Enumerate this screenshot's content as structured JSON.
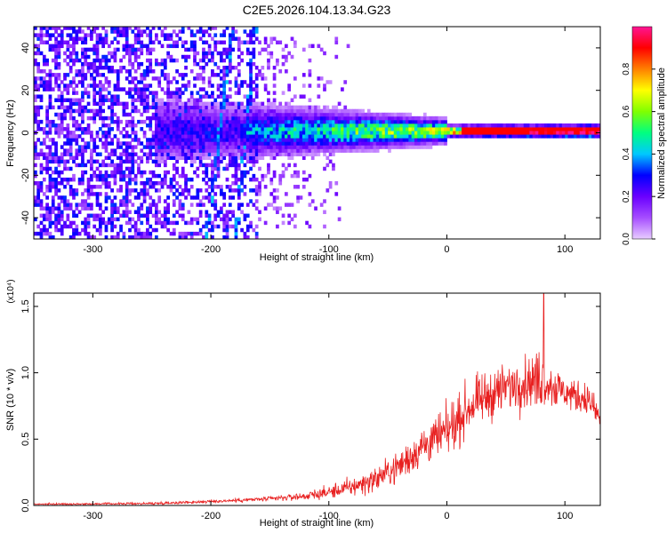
{
  "figure_title": "C2E5.2026.104.13.34.G23",
  "chart_data": [
    {
      "type": "heatmap",
      "title": "C2E5.2026.104.13.34.G23",
      "xlabel": "Height of straight line (km)",
      "ylabel": "Frequency (Hz)",
      "xlim": [
        -350,
        130
      ],
      "ylim": [
        -50,
        50
      ],
      "x_ticks": [
        -300,
        -200,
        -100,
        0,
        100
      ],
      "y_ticks": [
        -40,
        -20,
        0,
        20,
        40
      ],
      "x_tick_labels": [
        "-300",
        "-200",
        "-100",
        "0",
        "100"
      ],
      "y_tick_labels": [
        "-40",
        "-20",
        "0",
        "20",
        "40"
      ],
      "colorbar": {
        "label": "Normalized spectral amplitude",
        "range": [
          0,
          1
        ],
        "ticks": [
          0.0,
          0.2,
          0.4,
          0.6,
          0.8
        ],
        "tick_labels": [
          "0.0",
          "0.2",
          "0.4",
          "0.6",
          "0.8"
        ],
        "colors": [
          "#e8cdff",
          "#a64dff",
          "#6a00ff",
          "#0000ff",
          "#00c8ff",
          "#00ff80",
          "#80ff00",
          "#ffff00",
          "#ff8000",
          "#ff0000",
          "#ff1493"
        ]
      },
      "features": [
        {
          "name": "central carrier band",
          "freq_hz": 0,
          "x_range": [
            -170,
            130
          ],
          "peak_amplitude": 0.95
        },
        {
          "name": "diagonal streak A",
          "from": [
            -205,
            -50
          ],
          "to": [
            -185,
            40
          ]
        },
        {
          "name": "diagonal streak B",
          "from": [
            -180,
            -50
          ],
          "to": [
            -165,
            40
          ]
        }
      ]
    },
    {
      "type": "line",
      "xlabel": "Height of straight line (km)",
      "ylabel": "SNR (10 * v/v)",
      "y_multiplier_label": "(x10⁴)",
      "xlim": [
        -350,
        130
      ],
      "ylim": [
        0,
        1.6
      ],
      "x_ticks": [
        -300,
        -200,
        -100,
        0,
        100
      ],
      "y_ticks": [
        0.0,
        0.5,
        1.0,
        1.5
      ],
      "x_tick_labels": [
        "-300",
        "-200",
        "-100",
        "0",
        "100"
      ],
      "y_tick_labels": [
        "0.0",
        "0.5",
        "1.0",
        "1.5"
      ],
      "color": "#e82020",
      "series": [
        {
          "name": "SNR",
          "envelope_x": [
            -350,
            -300,
            -250,
            -200,
            -150,
            -120,
            -100,
            -80,
            -60,
            -40,
            -20,
            0,
            20,
            40,
            60,
            80,
            100,
            120,
            130
          ],
          "envelope_mean": [
            0.01,
            0.012,
            0.015,
            0.03,
            0.05,
            0.07,
            0.1,
            0.14,
            0.2,
            0.3,
            0.45,
            0.55,
            0.75,
            0.85,
            0.92,
            0.95,
            0.85,
            0.8,
            0.65
          ],
          "envelope_spread": [
            0.01,
            0.01,
            0.015,
            0.02,
            0.03,
            0.05,
            0.08,
            0.12,
            0.15,
            0.2,
            0.25,
            0.3,
            0.3,
            0.3,
            0.3,
            0.35,
            0.2,
            0.2,
            0.15
          ],
          "peak": {
            "x": 82,
            "y": 1.6
          }
        }
      ]
    }
  ]
}
